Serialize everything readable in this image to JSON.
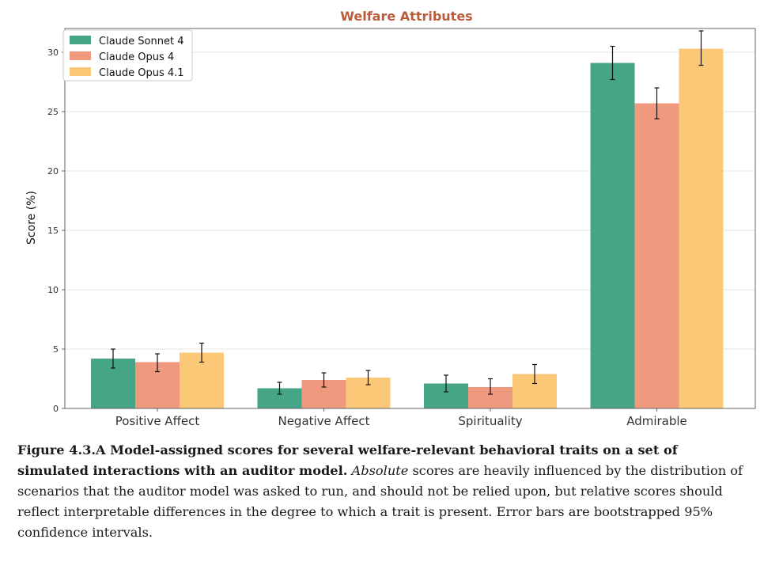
{
  "chart_data": {
    "type": "bar",
    "title": "Welfare Attributes",
    "xlabel": "",
    "ylabel": "Score (%)",
    "ylim": [
      0,
      32
    ],
    "yticks": [
      0,
      5,
      10,
      15,
      20,
      25,
      30
    ],
    "grid": "horizontal",
    "legend_position": "top-left",
    "categories": [
      "Positive Affect",
      "Negative Affect",
      "Spirituality",
      "Admirable"
    ],
    "series": [
      {
        "name": "Claude Sonnet 4",
        "color": "#45a586",
        "values": [
          4.2,
          1.7,
          2.1,
          29.1
        ],
        "ci_low": [
          3.4,
          1.2,
          1.4,
          27.7
        ],
        "ci_high": [
          5.0,
          2.2,
          2.8,
          30.5
        ]
      },
      {
        "name": "Claude Opus 4",
        "color": "#ef9a7e",
        "values": [
          3.9,
          2.4,
          1.8,
          25.7
        ],
        "ci_low": [
          3.1,
          1.8,
          1.2,
          24.4
        ],
        "ci_high": [
          4.6,
          3.0,
          2.5,
          27.0
        ]
      },
      {
        "name": "Claude Opus 4.1",
        "color": "#fbc878",
        "values": [
          4.7,
          2.6,
          2.9,
          30.3
        ],
        "ci_low": [
          3.9,
          2.0,
          2.1,
          28.9
        ],
        "ci_high": [
          5.5,
          3.2,
          3.7,
          31.8
        ]
      }
    ],
    "title_color": "#b85c3c"
  },
  "caption": {
    "bold": "Figure 4.3.A Model-assigned scores for several welfare-relevant behavioral traits on a set of simulated interactions with an auditor model.",
    "italic": "Absolute",
    "rest": "scores are heavily influenced by the distribution of scenarios that the auditor model was asked to run, and should not be relied upon, but relative scores should reflect interpretable differences in the degree to which a trait is present. Error bars are bootstrapped 95% confidence intervals."
  }
}
